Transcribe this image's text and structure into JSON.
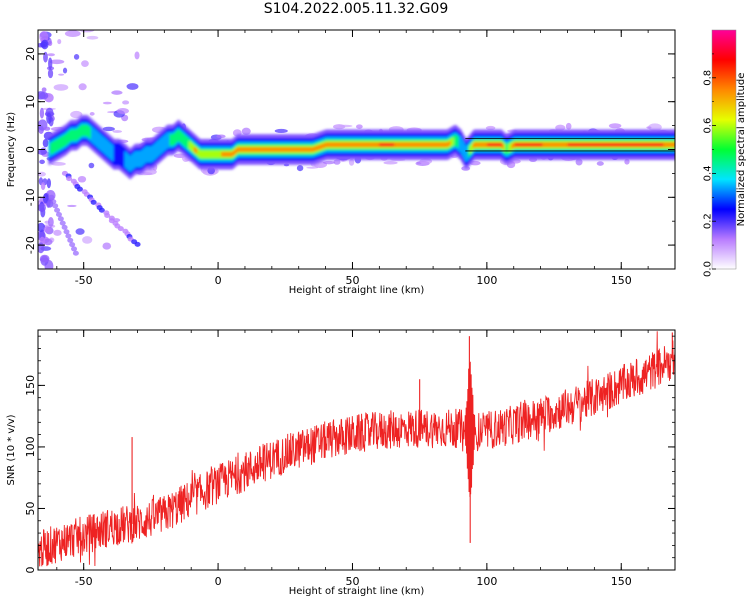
{
  "title": "S104.2022.005.11.32.G09",
  "chart_data": [
    {
      "type": "heatmap",
      "xlabel": "Height of straight line (km)",
      "ylabel": "Frequency (Hz)",
      "xlim": [
        -67,
        170
      ],
      "ylim": [
        -25,
        25
      ],
      "x_ticks": [
        -50,
        0,
        50,
        100,
        150
      ],
      "y_ticks": [
        -20,
        -10,
        0,
        10,
        20
      ],
      "colorbar": {
        "label": "Normalized spectral amplitude",
        "range": [
          0,
          1
        ],
        "ticks": [
          0.0,
          0.2,
          0.4,
          0.6,
          0.8
        ],
        "tick_labels": [
          "0.0",
          "0.2",
          "0.4",
          "0.6",
          "0.8"
        ],
        "colormap": [
          "#ffffff",
          "#b87bff",
          "#0000ff",
          "#00e5ff",
          "#00ff33",
          "#e6ff00",
          "#ff8800",
          "#ff0000",
          "#ff0099"
        ]
      },
      "ridge": {
        "x": [
          -63,
          -60,
          -57,
          -55,
          -53,
          -51,
          -49,
          -47,
          -45,
          -43,
          -41,
          -39,
          -37,
          -35,
          -33,
          -31,
          -29,
          -27,
          -25,
          -23,
          -21,
          -19,
          -17,
          -15,
          -13,
          -11,
          -9,
          -7,
          -5,
          -3,
          -1,
          1,
          3,
          5,
          7,
          10,
          15,
          20,
          25,
          30,
          35,
          40,
          45,
          50,
          55,
          60,
          65,
          70,
          75,
          80,
          85,
          88,
          90,
          92,
          95,
          100,
          105,
          107,
          110,
          115,
          120,
          125,
          130,
          135,
          140,
          145,
          150,
          155,
          160,
          165,
          170
        ],
        "frequency": [
          0,
          1,
          2,
          3,
          3,
          4,
          4,
          3,
          2,
          1,
          0,
          -1,
          -1,
          -2,
          -3,
          -2,
          -2,
          -1,
          -1,
          0,
          1,
          2,
          2,
          3,
          2,
          1,
          0,
          -1,
          -1,
          -1,
          -1,
          -1,
          -1,
          -1,
          0,
          0,
          0,
          0,
          0,
          0,
          0,
          1,
          1,
          1,
          1,
          1,
          1,
          1,
          1,
          1,
          1,
          2,
          1,
          -1,
          1,
          1,
          1,
          0,
          1,
          1,
          1,
          1,
          1,
          1,
          1,
          1,
          1,
          1,
          1,
          1,
          1
        ],
        "amplitude": [
          0.4,
          0.5,
          0.55,
          0.5,
          0.45,
          0.5,
          0.45,
          0.4,
          0.35,
          0.35,
          0.3,
          0.3,
          0.25,
          0.3,
          0.3,
          0.35,
          0.35,
          0.35,
          0.4,
          0.4,
          0.4,
          0.4,
          0.45,
          0.45,
          0.5,
          0.55,
          0.75,
          0.6,
          0.55,
          0.65,
          0.55,
          0.7,
          0.75,
          0.85,
          0.7,
          0.7,
          0.85,
          0.8,
          0.75,
          0.75,
          0.75,
          0.75,
          0.75,
          0.8,
          0.75,
          0.85,
          0.85,
          0.8,
          0.75,
          0.75,
          0.85,
          0.5,
          0.35,
          0.3,
          0.8,
          0.85,
          0.85,
          0.5,
          0.85,
          0.85,
          0.85,
          0.75,
          0.85,
          0.85,
          0.85,
          0.85,
          0.85,
          0.85,
          0.85,
          0.85,
          0.8
        ]
      }
    },
    {
      "type": "line",
      "xlabel": "Height of straight line (km)",
      "ylabel": "SNR (10 * v/v)",
      "xlim": [
        -67,
        170
      ],
      "ylim": [
        0,
        195
      ],
      "x_ticks": [
        -50,
        0,
        50,
        100,
        150
      ],
      "y_ticks": [
        0,
        50,
        100,
        150
      ],
      "series": [
        {
          "color": "#ee2222",
          "x": [
            -67,
            -60,
            -50,
            -40,
            -30,
            -20,
            -10,
            0,
            10,
            20,
            30,
            40,
            50,
            60,
            70,
            80,
            90,
            95,
            100,
            110,
            120,
            130,
            140,
            150,
            160,
            170
          ],
          "y": [
            15,
            22,
            28,
            35,
            38,
            45,
            58,
            70,
            80,
            90,
            98,
            105,
            110,
            113,
            115,
            115,
            115,
            112,
            113,
            118,
            125,
            132,
            140,
            150,
            160,
            172
          ],
          "spikes": [
            {
              "x": -32,
              "y": 108
            },
            {
              "x": 75,
              "y": 155
            },
            {
              "x": 93.5,
              "y": 190
            },
            {
              "x": 93.8,
              "y": 22
            },
            {
              "x": 169,
              "y": 193
            }
          ]
        }
      ]
    }
  ]
}
